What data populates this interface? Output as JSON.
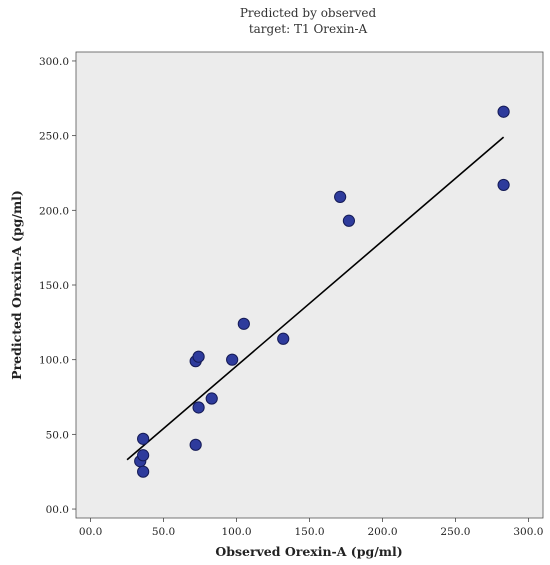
{
  "chart_data": {
    "type": "scatter",
    "title": "Predicted by observed",
    "subtitle": "target: T1 Orexin-A",
    "xlabel": "Observed Orexin-A (pg/ml)",
    "ylabel": "Predicted Orexin-A (pg/ml)",
    "xlim": [
      -10,
      310
    ],
    "ylim": [
      -6,
      306
    ],
    "xticks": [
      "00.0",
      "50.0",
      "100.0",
      "150.0",
      "200.0",
      "250.0",
      "300.0"
    ],
    "xtick_values": [
      0,
      50,
      100,
      150,
      200,
      250,
      300
    ],
    "yticks": [
      "00.0",
      "50.0",
      "100.0",
      "150.0",
      "200.0",
      "250.0",
      "300.0"
    ],
    "ytick_values": [
      0,
      50,
      100,
      150,
      200,
      250,
      300
    ],
    "grid": false,
    "points": [
      {
        "x": 34,
        "y": 32
      },
      {
        "x": 36,
        "y": 25
      },
      {
        "x": 36,
        "y": 36
      },
      {
        "x": 36,
        "y": 47
      },
      {
        "x": 72,
        "y": 43
      },
      {
        "x": 72,
        "y": 99
      },
      {
        "x": 74,
        "y": 68
      },
      {
        "x": 74,
        "y": 102
      },
      {
        "x": 83,
        "y": 74
      },
      {
        "x": 97,
        "y": 100
      },
      {
        "x": 105,
        "y": 124
      },
      {
        "x": 132,
        "y": 114
      },
      {
        "x": 171,
        "y": 209
      },
      {
        "x": 177,
        "y": 193
      },
      {
        "x": 283,
        "y": 266
      },
      {
        "x": 283,
        "y": 217
      }
    ],
    "fit_line": {
      "x": [
        25,
        283
      ],
      "y": [
        33,
        249
      ]
    },
    "colors": {
      "plot_bg": "#ececec",
      "point_fill": "#2e3b9c",
      "point_edge": "#141a55",
      "line": "#000000"
    }
  }
}
